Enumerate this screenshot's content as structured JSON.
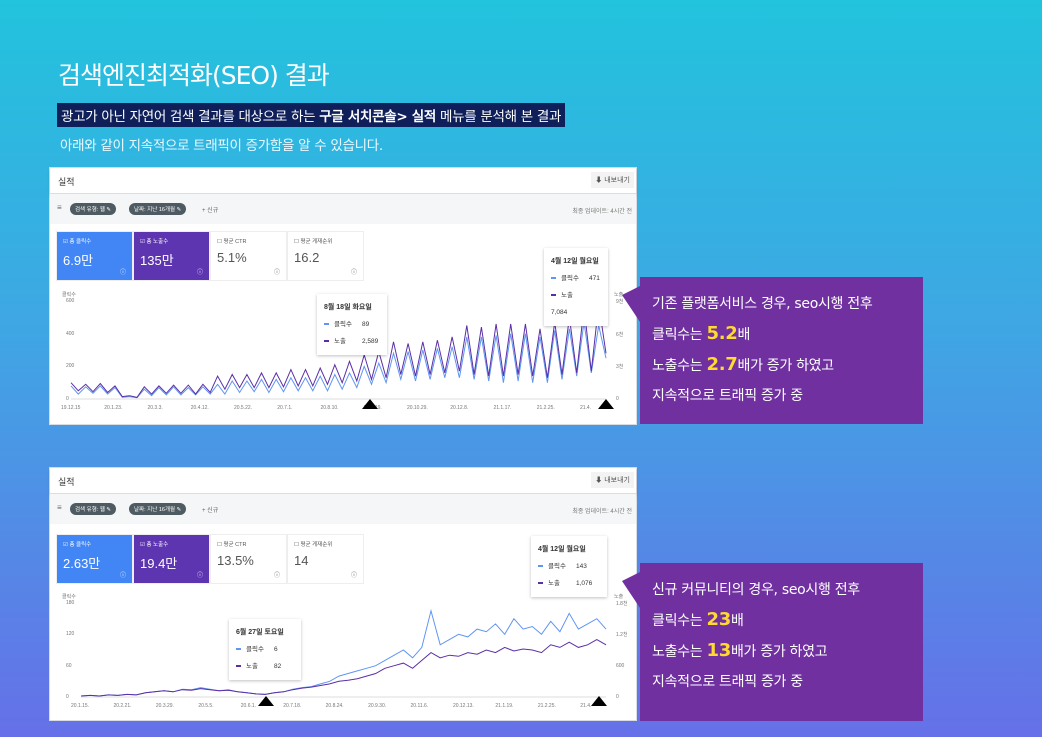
{
  "header": {
    "title": "검색엔진최적화(SEO) 결과",
    "subtitle_pre": "광고가 아닌 자연어 검색 결과를 대상으로 하는 ",
    "subtitle_bold": "구글 서치콘솔> 실적",
    "subtitle_post": " 메뉴를 분석해 본 결과",
    "subtitle2": "아래와 같이 지속적으로 트래픽이 증가함을 알 수 있습니다."
  },
  "colors": {
    "clicks": "#5f95f3",
    "impressions": "#5a2fa6",
    "callout": "#7030a0",
    "highlight": "#ffd832"
  },
  "panels": [
    {
      "title": "실적",
      "export": "내보내기",
      "chip1": "검색 유형: 웹",
      "chip2": "날짜: 지난 16개월",
      "add": "+ 신규",
      "updated": "최종 업데이트: 4시간 전",
      "cards": [
        {
          "label": "☑ 총 클릭수",
          "value": "6.9만"
        },
        {
          "label": "☑ 총 노출수",
          "value": "135만"
        },
        {
          "label": "☐ 평균 CTR",
          "value": "5.1%"
        },
        {
          "label": "☐ 평균 게재순위",
          "value": "16.2"
        }
      ],
      "tip1": {
        "date": "8월 18일 화요일",
        "clicks_label": "클릭수",
        "clicks": "89",
        "imp_label": "노출",
        "imp": "2,589"
      },
      "tip2": {
        "date": "4월 12일 월요일",
        "clicks_label": "클릭수",
        "clicks": "471",
        "imp_label": "노출",
        "imp": "7,084"
      },
      "callout": {
        "l1": "기존 플랫폼서비스 경우,  seo시행 전후",
        "l2a": "클릭수는 ",
        "l2b": "5.2",
        "l2c": "배",
        "l3a": "노출수는 ",
        "l3b": "2.7",
        "l3c": "배가 증가 하였고",
        "l4": "지속적으로 트래픽 증가 중"
      }
    },
    {
      "title": "실적",
      "export": "내보내기",
      "chip1": "검색 유형: 웹",
      "chip2": "날짜: 지난 16개월",
      "add": "+ 신규",
      "updated": "최종 업데이트: 4시간 전",
      "cards": [
        {
          "label": "☑ 총 클릭수",
          "value": "2.63만"
        },
        {
          "label": "☑ 총 노출수",
          "value": "19.4만"
        },
        {
          "label": "☐ 평균 CTR",
          "value": "13.5%"
        },
        {
          "label": "☐ 평균 게재순위",
          "value": "14"
        }
      ],
      "tip1": {
        "date": "6월 27일 토요일",
        "clicks_label": "클릭수",
        "clicks": "6",
        "imp_label": "노출",
        "imp": "82"
      },
      "tip2": {
        "date": "4월 12일 월요일",
        "clicks_label": "클릭수",
        "clicks": "143",
        "imp_label": "노출",
        "imp": "1,076"
      },
      "callout": {
        "l1": "신규 커뮤니티의 경우,  seo시행 전후",
        "l2a": "클릭수는 ",
        "l2b": "23",
        "l2c": "배",
        "l3a": "노출수는 ",
        "l3b": "13",
        "l3c": "배가 증가 하였고",
        "l4": "지속적으로 트래픽 증가 중"
      }
    }
  ],
  "chart_data": [
    {
      "type": "line",
      "ylabel_left": "클릭수",
      "ylabel_right": "노출",
      "yticks_left": [
        "600",
        "400",
        "200",
        "0"
      ],
      "yticks_right": [
        "9천",
        "6천",
        "3천",
        "0"
      ],
      "ylim": [
        0,
        600
      ],
      "xticks": [
        "19.12.15",
        "20.1.23.",
        "20.3.3.",
        "20.4.12.",
        "20.5.22.",
        "20.7.1.",
        "20.8.10.",
        "20.9.19.",
        "20.10.29.",
        "20.12.8.",
        "21.1.17.",
        "21.2.25.",
        "21.4."
      ],
      "series": [
        {
          "name": "클릭수",
          "values": [
            80,
            30,
            75,
            35,
            80,
            30,
            70,
            10,
            15,
            8,
            60,
            20,
            70,
            25,
            75,
            25,
            70,
            25,
            75,
            30,
            90,
            30,
            110,
            40,
            110,
            45,
            120,
            40,
            120,
            45,
            130,
            50,
            130,
            50,
            140,
            50,
            150,
            60,
            160,
            70,
            200,
            90,
            220,
            100,
            280,
            120,
            290,
            110,
            300,
            120,
            310,
            130,
            320,
            130,
            380,
            120,
            380,
            110,
            390,
            100,
            400,
            110,
            400,
            100,
            380,
            100,
            420,
            120,
            430,
            140,
            470,
            160,
            450,
            250
          ]
        },
        {
          "name": "노출",
          "values": [
            100,
            50,
            90,
            45,
            95,
            40,
            80,
            15,
            20,
            10,
            75,
            30,
            80,
            35,
            85,
            35,
            85,
            30,
            90,
            40,
            140,
            60,
            150,
            70,
            150,
            70,
            160,
            70,
            160,
            75,
            180,
            80,
            180,
            80,
            190,
            90,
            210,
            100,
            230,
            110,
            270,
            120,
            290,
            130,
            350,
            150,
            340,
            140,
            350,
            150,
            360,
            160,
            380,
            170,
            450,
            150,
            440,
            140,
            460,
            140,
            460,
            150,
            460,
            140,
            430,
            130,
            470,
            150,
            500,
            160,
            560,
            170,
            580,
            280
          ]
        }
      ]
    },
    {
      "type": "line",
      "ylabel_left": "클릭수",
      "ylabel_right": "노출",
      "yticks_left": [
        "180",
        "120",
        "60",
        "0"
      ],
      "yticks_right": [
        "1.8천",
        "1.2천",
        "600",
        "0"
      ],
      "ylim": [
        0,
        180
      ],
      "xticks": [
        "20.1.15.",
        "20.2.21.",
        "20.3.29.",
        "20.5.5.",
        "20.6.1.",
        "20.7.18.",
        "20.8.24.",
        "20.9.30.",
        "20.11.6.",
        "20.12.13.",
        "21.1.19.",
        "21.2.25.",
        "21.4."
      ],
      "series": [
        {
          "name": "클릭수",
          "values": [
            2,
            3,
            2,
            4,
            3,
            5,
            4,
            8,
            10,
            12,
            10,
            15,
            14,
            18,
            15,
            12,
            14,
            10,
            8,
            6,
            5,
            8,
            10,
            15,
            18,
            20,
            25,
            30,
            40,
            45,
            50,
            55,
            60,
            70,
            80,
            90,
            75,
            95,
            165,
            100,
            110,
            120,
            115,
            130,
            125,
            140,
            120,
            150,
            130,
            135,
            120,
            145,
            125,
            160,
            130,
            140,
            150,
            130
          ]
        },
        {
          "name": "노출",
          "values": [
            2,
            3,
            2,
            4,
            3,
            5,
            4,
            8,
            10,
            12,
            10,
            14,
            13,
            16,
            14,
            12,
            13,
            10,
            8,
            6,
            5,
            8,
            10,
            14,
            17,
            19,
            22,
            25,
            30,
            32,
            35,
            40,
            45,
            55,
            60,
            65,
            55,
            70,
            85,
            75,
            80,
            78,
            85,
            82,
            90,
            85,
            95,
            88,
            92,
            90,
            85,
            100,
            95,
            105,
            95,
            100,
            110,
            100
          ]
        }
      ]
    }
  ]
}
